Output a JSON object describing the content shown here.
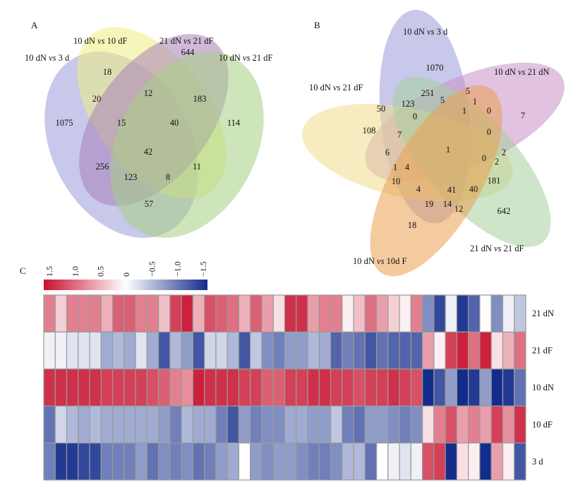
{
  "panels": {
    "a": "A",
    "b": "B",
    "c": "C"
  },
  "venn_a": {
    "sets": [
      {
        "label": "10 dN vs 3 d",
        "color": "#9a9ad8"
      },
      {
        "label": "10 dN vs 10 dF",
        "color": "#eeee84"
      },
      {
        "label": "21 dN vs 21 dF",
        "color": "#a880b8"
      },
      {
        "label": "10 dN vs 21 dF",
        "color": "#a6cf84"
      }
    ],
    "regions": [
      {
        "id": "only-1",
        "value": "1075"
      },
      {
        "id": "only-2",
        "value": "18"
      },
      {
        "id": "only-3",
        "value": "644"
      },
      {
        "id": "only-4",
        "value": "114"
      },
      {
        "id": "1-2",
        "value": "20"
      },
      {
        "id": "2-3",
        "value": "12"
      },
      {
        "id": "3-4",
        "value": "183"
      },
      {
        "id": "1-2-3",
        "value": "15"
      },
      {
        "id": "2-3-4",
        "value": "40"
      },
      {
        "id": "all",
        "value": "42"
      },
      {
        "id": "1-3",
        "value": "256"
      },
      {
        "id": "1-3-4",
        "value": "123"
      },
      {
        "id": "1-2-4",
        "value": "8"
      },
      {
        "id": "2-4",
        "value": "11"
      },
      {
        "id": "1-4",
        "value": "57"
      }
    ]
  },
  "venn_b": {
    "sets": [
      {
        "label": "10 dN vs 3 d",
        "color": "#9a9ad8"
      },
      {
        "label": "10 dN vs 21 dN",
        "color": "#c890c8"
      },
      {
        "label": "10 dN vs 21 dF",
        "color": "#eedc8c"
      },
      {
        "label": "21 dN vs 21 dF",
        "color": "#a6cf9c"
      },
      {
        "label": "10 dN vs 10d F",
        "color": "#eaa050"
      }
    ],
    "regions": [
      "1070",
      "251",
      "5",
      "123",
      "5",
      "1",
      "50",
      "0",
      "1",
      "0",
      "7",
      "108",
      "7",
      "0",
      "6",
      "1",
      "2",
      "1",
      "0",
      "2",
      "4",
      "10",
      "181",
      "4",
      "41",
      "40",
      "19",
      "14",
      "12",
      "642",
      "18"
    ]
  },
  "heatmap": {
    "rows": [
      "21 dN",
      "21 dF",
      "10 dN",
      "10 dF",
      "3 d"
    ],
    "color_scale": {
      "ticks": [
        "1.5",
        "1.0",
        "0.5",
        "0",
        "−0.5",
        "−1.0",
        "−1.5"
      ],
      "colors": [
        "#c8102e",
        "#ffffff",
        "#132c8c"
      ]
    }
  },
  "chart_data": [
    {
      "type": "table",
      "title": "",
      "subtype": "venn-4",
      "panel": "A",
      "sets": [
        "10 dN vs 3 d",
        "10 dN vs 10 dF",
        "21 dN vs 21 dF",
        "10 dN vs 21 dF"
      ],
      "values": [
        1075,
        18,
        644,
        114,
        20,
        12,
        183,
        15,
        40,
        42,
        256,
        123,
        8,
        11,
        57
      ]
    },
    {
      "type": "table",
      "title": "",
      "subtype": "venn-5",
      "panel": "B",
      "sets": [
        "10 dN vs 3 d",
        "10 dN vs 21 dN",
        "10 dN vs 21 dF",
        "21 dN vs 21 dF",
        "10 dN vs 10d F"
      ],
      "values": [
        1070,
        251,
        5,
        123,
        5,
        1,
        50,
        0,
        1,
        0,
        7,
        108,
        7,
        0,
        6,
        1,
        2,
        1,
        0,
        2,
        4,
        10,
        181,
        4,
        41,
        40,
        19,
        14,
        12,
        642,
        18
      ]
    },
    {
      "type": "heatmap",
      "title": "",
      "panel": "C",
      "rows": [
        "21 dN",
        "21 dF",
        "10 dN",
        "10 dF",
        "3 d"
      ],
      "scale_range": [
        -1.5,
        1.5
      ],
      "legend": "top-left",
      "values": [
        [
          0.8,
          0.3,
          0.8,
          0.8,
          0.8,
          0.5,
          1.0,
          1.0,
          0.8,
          0.8,
          0.4,
          1.2,
          1.4,
          0.5,
          1.1,
          1.0,
          0.9,
          0.5,
          1.0,
          0.6,
          0.2,
          1.3,
          1.3,
          0.6,
          0.8,
          0.8,
          0.1,
          0.4,
          0.9,
          0.6,
          0.3,
          0.1,
          0.8,
          -0.8,
          -1.3,
          -0.1,
          -1.4,
          -1.1,
          0.0,
          -0.8,
          -0.1,
          -0.4
        ],
        [
          -0.1,
          -0.1,
          -0.2,
          -0.2,
          -0.2,
          -0.6,
          -0.5,
          -0.6,
          -0.2,
          -0.6,
          -1.2,
          -0.5,
          -0.7,
          -1.2,
          -0.3,
          -0.3,
          -0.5,
          -1.2,
          -0.4,
          -0.8,
          -0.9,
          -0.7,
          -0.7,
          -0.5,
          -0.6,
          -1.1,
          -0.9,
          -1.0,
          -1.2,
          -1.0,
          -1.1,
          -1.1,
          -1.1,
          0.6,
          0.1,
          1.2,
          1.4,
          0.9,
          1.4,
          0.2,
          0.5,
          0.9
        ],
        [
          1.3,
          1.3,
          1.3,
          1.3,
          1.3,
          1.2,
          1.2,
          1.2,
          1.2,
          1.1,
          1.0,
          0.8,
          0.7,
          1.4,
          1.3,
          1.3,
          1.3,
          1.2,
          1.2,
          1.0,
          1.0,
          1.2,
          1.2,
          1.3,
          1.3,
          1.2,
          1.2,
          1.1,
          1.2,
          1.2,
          1.3,
          1.2,
          1.1,
          -1.5,
          -1.2,
          -0.7,
          -1.5,
          -1.4,
          -0.7,
          -1.5,
          -1.4,
          -1.0
        ],
        [
          -1.0,
          -0.3,
          -0.5,
          -0.6,
          -0.5,
          -0.6,
          -0.6,
          -0.6,
          -0.6,
          -0.6,
          -0.7,
          -0.9,
          -0.5,
          -0.6,
          -0.6,
          -0.9,
          -1.2,
          -0.7,
          -0.9,
          -0.8,
          -0.8,
          -0.6,
          -0.6,
          -0.7,
          -0.7,
          -0.4,
          -0.9,
          -1.0,
          -0.7,
          -0.7,
          -0.8,
          -0.9,
          -0.8,
          0.2,
          0.8,
          1.1,
          0.6,
          0.8,
          0.6,
          1.2,
          0.7,
          1.3
        ],
        [
          -0.9,
          -1.4,
          -1.4,
          -1.3,
          -1.3,
          -0.9,
          -0.9,
          -0.9,
          -0.7,
          -1.0,
          -0.8,
          -0.9,
          -0.8,
          -1.0,
          -0.9,
          -0.7,
          -0.6,
          0.0,
          -0.7,
          -0.8,
          -0.7,
          -0.7,
          -0.8,
          -0.9,
          -0.9,
          -0.8,
          -0.5,
          -0.5,
          -1.0,
          0.0,
          -0.1,
          -0.2,
          -0.1,
          1.1,
          1.2,
          -1.5,
          0.2,
          0.1,
          -1.5,
          0.6,
          0.1,
          -1.2
        ]
      ]
    }
  ]
}
